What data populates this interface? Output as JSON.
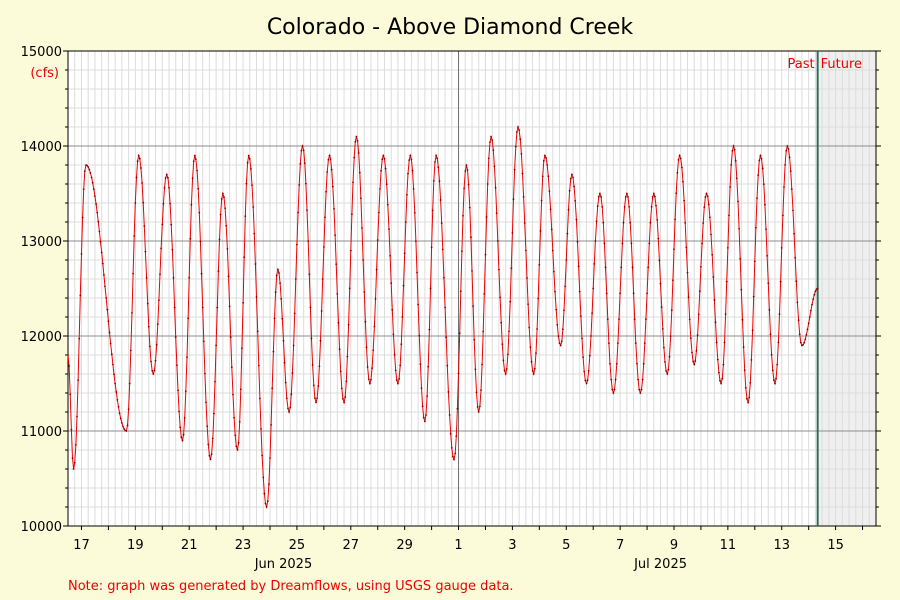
{
  "chart_data": {
    "type": "line",
    "title": "Colorado - Above Diamond Creek",
    "ylabel": "(cfs)",
    "ylim": [
      10000,
      15000
    ],
    "y_ticks": [
      10000,
      11000,
      12000,
      13000,
      14000,
      15000
    ],
    "y_tick_labels": [
      "10000",
      "11000",
      "12000",
      "13000",
      "14000",
      "15000"
    ],
    "x_start": "2025-06-16T12:00",
    "x_end": "2025-07-16T12:00",
    "x_ticks": [
      {
        "date": "2025-06-17T00:00",
        "label": "17"
      },
      {
        "date": "2025-06-19T00:00",
        "label": "19"
      },
      {
        "date": "2025-06-21T00:00",
        "label": "21"
      },
      {
        "date": "2025-06-23T00:00",
        "label": "23"
      },
      {
        "date": "2025-06-25T00:00",
        "label": "25"
      },
      {
        "date": "2025-06-27T00:00",
        "label": "27"
      },
      {
        "date": "2025-06-29T00:00",
        "label": "29"
      },
      {
        "date": "2025-07-01T00:00",
        "label": "1"
      },
      {
        "date": "2025-07-03T00:00",
        "label": "3"
      },
      {
        "date": "2025-07-05T00:00",
        "label": "5"
      },
      {
        "date": "2025-07-07T00:00",
        "label": "7"
      },
      {
        "date": "2025-07-09T00:00",
        "label": "9"
      },
      {
        "date": "2025-07-11T00:00",
        "label": "11"
      },
      {
        "date": "2025-07-13T00:00",
        "label": "13"
      },
      {
        "date": "2025-07-15T00:00",
        "label": "15"
      }
    ],
    "month_labels": [
      {
        "date": "2025-06-24T12:00",
        "label": "Jun 2025"
      },
      {
        "date": "2025-07-08T12:00",
        "label": "Jul 2025"
      }
    ],
    "month_boundary": "2025-07-01T00:00",
    "now": "2025-07-14T08:00",
    "past_label": "Past",
    "future_label": "Future",
    "grid": true,
    "series": [
      {
        "color": "#ee0000",
        "daily_cycles": [
          {
            "min_date": "2025-06-16T17:00",
            "min": 10600,
            "max_date": "2025-06-17T04:00",
            "max": 13800
          },
          {
            "min_date": "2025-06-18T16:00",
            "min": 11000,
            "max_date": "2025-06-19T03:00",
            "max": 13900
          },
          {
            "min_date": "2025-06-19T16:00",
            "min": 11600,
            "max_date": "2025-06-20T04:00",
            "max": 13700
          },
          {
            "min_date": "2025-06-20T18:00",
            "min": 10900,
            "max_date": "2025-06-21T05:00",
            "max": 13900
          },
          {
            "min_date": "2025-06-21T19:00",
            "min": 10700,
            "max_date": "2025-06-22T06:00",
            "max": 13500
          },
          {
            "min_date": "2025-06-22T19:00",
            "min": 10800,
            "max_date": "2025-06-23T05:00",
            "max": 13900
          },
          {
            "min_date": "2025-06-23T21:00",
            "min": 10200,
            "max_date": "2025-06-24T07:00",
            "max": 12700
          },
          {
            "min_date": "2025-06-24T17:00",
            "min": 11200,
            "max_date": "2025-06-25T05:00",
            "max": 14000
          },
          {
            "min_date": "2025-06-25T17:00",
            "min": 11300,
            "max_date": "2025-06-26T05:00",
            "max": 13900
          },
          {
            "min_date": "2025-06-26T18:00",
            "min": 11300,
            "max_date": "2025-06-27T05:00",
            "max": 14100
          },
          {
            "min_date": "2025-06-27T17:00",
            "min": 11500,
            "max_date": "2025-06-28T05:00",
            "max": 13900
          },
          {
            "min_date": "2025-06-28T18:00",
            "min": 11500,
            "max_date": "2025-06-29T05:00",
            "max": 13900
          },
          {
            "min_date": "2025-06-29T18:00",
            "min": 11100,
            "max_date": "2025-06-30T04:00",
            "max": 13900
          },
          {
            "min_date": "2025-06-30T20:00",
            "min": 10700,
            "max_date": "2025-07-01T07:00",
            "max": 13800
          },
          {
            "min_date": "2025-07-01T18:00",
            "min": 11200,
            "max_date": "2025-07-02T05:00",
            "max": 14100
          },
          {
            "min_date": "2025-07-02T18:00",
            "min": 11600,
            "max_date": "2025-07-03T05:00",
            "max": 14200
          },
          {
            "min_date": "2025-07-03T19:00",
            "min": 11600,
            "max_date": "2025-07-04T05:00",
            "max": 13900
          },
          {
            "min_date": "2025-07-04T19:00",
            "min": 11900,
            "max_date": "2025-07-05T05:00",
            "max": 13700
          },
          {
            "min_date": "2025-07-05T18:00",
            "min": 11500,
            "max_date": "2025-07-06T06:00",
            "max": 13500
          },
          {
            "min_date": "2025-07-06T18:00",
            "min": 11400,
            "max_date": "2025-07-07T06:00",
            "max": 13500
          },
          {
            "min_date": "2025-07-07T18:00",
            "min": 11400,
            "max_date": "2025-07-08T06:00",
            "max": 13500
          },
          {
            "min_date": "2025-07-08T18:00",
            "min": 11600,
            "max_date": "2025-07-09T05:00",
            "max": 13900
          },
          {
            "min_date": "2025-07-09T18:00",
            "min": 11700,
            "max_date": "2025-07-10T05:00",
            "max": 13500
          },
          {
            "min_date": "2025-07-10T18:00",
            "min": 11500,
            "max_date": "2025-07-11T05:00",
            "max": 14000
          },
          {
            "min_date": "2025-07-11T18:00",
            "min": 11300,
            "max_date": "2025-07-12T05:00",
            "max": 13900
          },
          {
            "min_date": "2025-07-12T18:00",
            "min": 11500,
            "max_date": "2025-07-13T05:00",
            "max": 14000
          },
          {
            "min_date": "2025-07-13T18:00",
            "min": 11900,
            "max_date": "2025-07-14T08:00",
            "max": 12500
          }
        ],
        "first_value": {
          "date": "2025-06-16T12:00",
          "value": 11800
        }
      }
    ]
  },
  "note": "Note: graph was generated by Dreamflows, using USGS gauge data."
}
